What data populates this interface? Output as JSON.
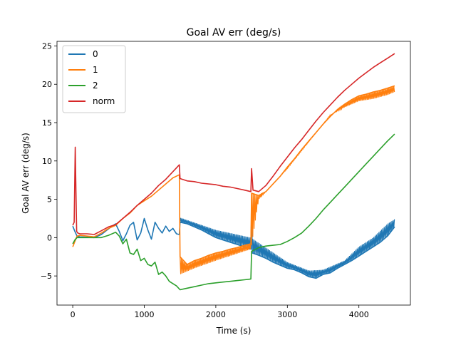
{
  "chart_data": {
    "type": "line",
    "title": "Goal AV err (deg/s)",
    "xlabel": "Time (s)",
    "ylabel": "Goal AV err (deg/s)",
    "xlim": [
      -220,
      4720
    ],
    "ylim": [
      -8.8,
      25.6
    ],
    "xticks": [
      0,
      1000,
      2000,
      3000,
      4000
    ],
    "yticks": [
      -5,
      0,
      5,
      10,
      15,
      20,
      25
    ],
    "xtick_labels": [
      "0",
      "1000",
      "2000",
      "3000",
      "4000"
    ],
    "ytick_labels": [
      "−5",
      "0",
      "5",
      "10",
      "15",
      "20",
      "25"
    ],
    "legend_position": "top-left",
    "grid": false,
    "series": [
      {
        "name": "0",
        "color": "#1f77b4",
        "points": [
          [
            0,
            1.5
          ],
          [
            30,
            0.8
          ],
          [
            60,
            0.2
          ],
          [
            100,
            0.1
          ],
          [
            200,
            0.05
          ],
          [
            300,
            0.0
          ],
          [
            400,
            0.4
          ],
          [
            480,
            1.0
          ],
          [
            550,
            1.5
          ],
          [
            600,
            1.8
          ],
          [
            650,
            0.8
          ],
          [
            700,
            -0.4
          ],
          [
            750,
            0.5
          ],
          [
            800,
            1.6
          ],
          [
            850,
            2.0
          ],
          [
            900,
            -0.3
          ],
          [
            950,
            0.6
          ],
          [
            1000,
            2.5
          ],
          [
            1050,
            1.0
          ],
          [
            1100,
            -0.2
          ],
          [
            1150,
            2.0
          ],
          [
            1200,
            1.2
          ],
          [
            1250,
            0.6
          ],
          [
            1300,
            1.5
          ],
          [
            1350,
            0.8
          ],
          [
            1400,
            1.2
          ],
          [
            1450,
            0.5
          ],
          [
            1490,
            0.4
          ],
          [
            1500,
            2.0
          ],
          [
            1600,
            1.8
          ],
          [
            1700,
            1.4
          ],
          [
            1800,
            1.0
          ],
          [
            1900,
            0.5
          ],
          [
            2000,
            0.0
          ],
          [
            2100,
            -0.3
          ],
          [
            2200,
            -0.6
          ],
          [
            2300,
            -0.9
          ],
          [
            2400,
            -1.2
          ],
          [
            2490,
            -1.5
          ],
          [
            2500,
            3.1
          ],
          [
            2510,
            -2.0
          ],
          [
            2600,
            -2.3
          ],
          [
            2700,
            -2.7
          ],
          [
            2800,
            -3.2
          ],
          [
            2900,
            -3.6
          ],
          [
            3000,
            -4.0
          ],
          [
            3100,
            -4.2
          ],
          [
            3200,
            -4.6
          ],
          [
            3300,
            -5.1
          ],
          [
            3400,
            -5.3
          ],
          [
            3500,
            -4.8
          ],
          [
            3600,
            -4.6
          ],
          [
            3700,
            -4.0
          ],
          [
            3800,
            -3.5
          ],
          [
            3900,
            -3.0
          ],
          [
            4000,
            -2.4
          ],
          [
            4100,
            -1.8
          ],
          [
            4200,
            -1.2
          ],
          [
            4300,
            -0.6
          ],
          [
            4400,
            0.2
          ],
          [
            4500,
            1.4
          ]
        ],
        "band": [
          [
            1500,
            2.6
          ],
          [
            2000,
            1.0
          ],
          [
            2490,
            0.0
          ],
          [
            3000,
            -3.2
          ],
          [
            3300,
            -4.3
          ],
          [
            3500,
            -4.2
          ],
          [
            3800,
            -3.0
          ],
          [
            4000,
            -1.2
          ],
          [
            4200,
            0.0
          ],
          [
            4400,
            1.8
          ],
          [
            4500,
            2.4
          ]
        ]
      },
      {
        "name": "1",
        "color": "#ff7f0e",
        "points": [
          [
            0,
            -1.2
          ],
          [
            30,
            -0.5
          ],
          [
            60,
            0.2
          ],
          [
            100,
            0.3
          ],
          [
            200,
            0.2
          ],
          [
            300,
            0.1
          ],
          [
            400,
            0.6
          ],
          [
            500,
            1.2
          ],
          [
            600,
            1.6
          ],
          [
            700,
            2.5
          ],
          [
            800,
            3.2
          ],
          [
            900,
            4.2
          ],
          [
            1000,
            4.8
          ],
          [
            1100,
            5.4
          ],
          [
            1200,
            6.2
          ],
          [
            1300,
            7.0
          ],
          [
            1400,
            7.8
          ],
          [
            1490,
            8.2
          ],
          [
            1500,
            -2.5
          ],
          [
            1600,
            -3.5
          ],
          [
            1700,
            -3.0
          ],
          [
            1800,
            -2.7
          ],
          [
            1900,
            -2.3
          ],
          [
            2000,
            -2.0
          ],
          [
            2100,
            -1.8
          ],
          [
            2200,
            -1.5
          ],
          [
            2300,
            -1.3
          ],
          [
            2400,
            -1.0
          ],
          [
            2490,
            -0.8
          ],
          [
            2500,
            5.8
          ],
          [
            2600,
            5.5
          ],
          [
            2700,
            6.0
          ],
          [
            2800,
            7.0
          ],
          [
            2900,
            8.0
          ],
          [
            3000,
            9.2
          ],
          [
            3100,
            10.3
          ],
          [
            3200,
            11.5
          ],
          [
            3300,
            12.6
          ],
          [
            3400,
            13.7
          ],
          [
            3500,
            14.8
          ],
          [
            3600,
            15.8
          ],
          [
            3700,
            16.7
          ],
          [
            3800,
            17.4
          ],
          [
            3900,
            18.0
          ],
          [
            4000,
            18.5
          ],
          [
            4100,
            18.7
          ],
          [
            4200,
            19.0
          ],
          [
            4300,
            19.2
          ],
          [
            4400,
            19.5
          ],
          [
            4500,
            19.8
          ]
        ],
        "band": [
          [
            1500,
            -4.8
          ],
          [
            1700,
            -4.0
          ],
          [
            2000,
            -3.0
          ],
          [
            2490,
            -1.5
          ],
          [
            2600,
            5.0
          ],
          [
            3000,
            9.0
          ],
          [
            3600,
            16.0
          ],
          [
            3800,
            17.0
          ],
          [
            4000,
            17.8
          ],
          [
            4200,
            18.1
          ],
          [
            4400,
            18.6
          ],
          [
            4500,
            19.0
          ]
        ]
      },
      {
        "name": "2",
        "color": "#2ca02c",
        "points": [
          [
            0,
            -0.8
          ],
          [
            30,
            -0.3
          ],
          [
            60,
            0.0
          ],
          [
            100,
            0.0
          ],
          [
            200,
            0.0
          ],
          [
            300,
            0.0
          ],
          [
            400,
            0.0
          ],
          [
            500,
            0.3
          ],
          [
            600,
            0.7
          ],
          [
            650,
            0.2
          ],
          [
            700,
            -0.8
          ],
          [
            750,
            -0.2
          ],
          [
            800,
            -2.0
          ],
          [
            850,
            -2.2
          ],
          [
            900,
            -1.5
          ],
          [
            950,
            -3.0
          ],
          [
            1000,
            -2.7
          ],
          [
            1050,
            -3.5
          ],
          [
            1100,
            -3.7
          ],
          [
            1150,
            -3.2
          ],
          [
            1200,
            -4.8
          ],
          [
            1250,
            -4.5
          ],
          [
            1300,
            -5.0
          ],
          [
            1350,
            -5.7
          ],
          [
            1400,
            -6.0
          ],
          [
            1450,
            -6.3
          ],
          [
            1500,
            -6.8
          ],
          [
            1600,
            -6.6
          ],
          [
            1700,
            -6.4
          ],
          [
            1800,
            -6.2
          ],
          [
            1900,
            -6.0
          ],
          [
            2000,
            -5.9
          ],
          [
            2100,
            -5.8
          ],
          [
            2200,
            -5.7
          ],
          [
            2300,
            -5.6
          ],
          [
            2400,
            -5.5
          ],
          [
            2490,
            -5.4
          ],
          [
            2500,
            -1.8
          ],
          [
            2600,
            -1.3
          ],
          [
            2700,
            -1.1
          ],
          [
            2800,
            -1.0
          ],
          [
            2900,
            -0.9
          ],
          [
            3000,
            -0.5
          ],
          [
            3100,
            0.0
          ],
          [
            3200,
            0.6
          ],
          [
            3300,
            1.5
          ],
          [
            3400,
            2.5
          ],
          [
            3500,
            3.6
          ],
          [
            3600,
            4.6
          ],
          [
            3700,
            5.6
          ],
          [
            3800,
            6.6
          ],
          [
            3900,
            7.6
          ],
          [
            4000,
            8.6
          ],
          [
            4100,
            9.6
          ],
          [
            4200,
            10.6
          ],
          [
            4300,
            11.6
          ],
          [
            4400,
            12.6
          ],
          [
            4500,
            13.5
          ]
        ]
      },
      {
        "name": "norm",
        "color": "#d62728",
        "points": [
          [
            0,
            1.6
          ],
          [
            20,
            2.0
          ],
          [
            35,
            11.8
          ],
          [
            45,
            6.0
          ],
          [
            55,
            0.8
          ],
          [
            70,
            0.6
          ],
          [
            100,
            0.5
          ],
          [
            200,
            0.5
          ],
          [
            300,
            0.4
          ],
          [
            400,
            0.9
          ],
          [
            500,
            1.4
          ],
          [
            600,
            1.7
          ],
          [
            700,
            2.5
          ],
          [
            800,
            3.3
          ],
          [
            900,
            4.2
          ],
          [
            1000,
            5.0
          ],
          [
            1100,
            5.8
          ],
          [
            1200,
            6.8
          ],
          [
            1300,
            7.6
          ],
          [
            1400,
            8.6
          ],
          [
            1490,
            9.5
          ],
          [
            1500,
            7.7
          ],
          [
            1600,
            7.4
          ],
          [
            1700,
            7.3
          ],
          [
            1800,
            7.1
          ],
          [
            1900,
            7.0
          ],
          [
            2000,
            6.9
          ],
          [
            2100,
            6.7
          ],
          [
            2200,
            6.6
          ],
          [
            2300,
            6.4
          ],
          [
            2400,
            6.2
          ],
          [
            2490,
            6.0
          ],
          [
            2500,
            9.0
          ],
          [
            2520,
            6.2
          ],
          [
            2600,
            6.0
          ],
          [
            2700,
            6.8
          ],
          [
            2800,
            8.0
          ],
          [
            2900,
            9.3
          ],
          [
            3000,
            10.5
          ],
          [
            3100,
            11.7
          ],
          [
            3200,
            12.8
          ],
          [
            3300,
            14.0
          ],
          [
            3400,
            15.2
          ],
          [
            3500,
            16.3
          ],
          [
            3600,
            17.3
          ],
          [
            3700,
            18.3
          ],
          [
            3800,
            19.2
          ],
          [
            3900,
            20.0
          ],
          [
            4000,
            20.8
          ],
          [
            4100,
            21.5
          ],
          [
            4200,
            22.2
          ],
          [
            4300,
            22.8
          ],
          [
            4400,
            23.4
          ],
          [
            4500,
            24.0
          ]
        ]
      }
    ]
  }
}
